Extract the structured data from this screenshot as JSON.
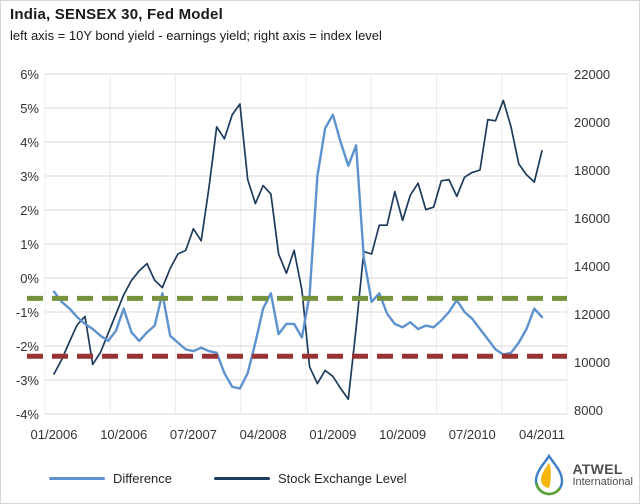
{
  "header": {
    "title": "India, SENSEX 30, Fed Model",
    "subtitle": "left axis = 10Y bond yield - earnings yield; right axis = index level"
  },
  "legend": {
    "items": [
      {
        "label": "Difference",
        "color": "#5E92CF"
      },
      {
        "label": "Stock Exchange Level",
        "color": "#1F3B5C"
      }
    ]
  },
  "logo": {
    "name": "ATWEL",
    "subname": "International"
  },
  "chart_data": {
    "type": "line",
    "title": "India, SENSEX 30, Fed Model",
    "subtitle": "left axis = 10Y bond yield - earnings yield; right axis = index level",
    "x_frequency": "monthly",
    "x_start": "01/2006",
    "x_end": "04/2011",
    "x_tick_labels": [
      "01/2006",
      "10/2006",
      "07/2007",
      "04/2008",
      "01/2009",
      "10/2009",
      "07/2010",
      "04/2011"
    ],
    "x_tick_month_index": [
      0,
      9,
      18,
      27,
      36,
      45,
      54,
      63
    ],
    "y_left": {
      "min": -4,
      "max": 6,
      "tick_step": 1,
      "ticks": [
        "6%",
        "5%",
        "4%",
        "3%",
        "2%",
        "1%",
        "0%",
        "-1%",
        "-2%",
        "-3%",
        "-4%"
      ]
    },
    "y_right": {
      "min": 8000,
      "max": 22000,
      "tick_step": 2000,
      "ticks": [
        "22000",
        "20000",
        "18000",
        "16000",
        "14000",
        "12000",
        "10000",
        "8000"
      ]
    },
    "grid": {
      "horizontal": true,
      "vertical": "faint",
      "color": "#D9D9D9",
      "vertical_color": "#ECECEC"
    },
    "legend_position": "bottom",
    "series": [
      {
        "name": "Difference",
        "axis": "left",
        "color": "#5E92CF",
        "width": 2.4,
        "values": [
          -0.4,
          -0.7,
          -0.9,
          -1.15,
          -1.35,
          -1.5,
          -1.7,
          -1.85,
          -1.55,
          -0.9,
          -1.6,
          -1.85,
          -1.6,
          -1.4,
          -0.45,
          -1.7,
          -1.9,
          -2.1,
          -2.15,
          -2.05,
          -2.15,
          -2.2,
          -2.8,
          -3.2,
          -3.25,
          -2.8,
          -1.9,
          -0.9,
          -0.45,
          -1.65,
          -1.35,
          -1.35,
          -1.75,
          -0.5,
          3.0,
          4.4,
          4.8,
          4.0,
          3.3,
          3.9,
          0.6,
          -0.7,
          -0.45,
          -1.05,
          -1.35,
          -1.45,
          -1.3,
          -1.5,
          -1.4,
          -1.45,
          -1.25,
          -1.0,
          -0.65,
          -1.0,
          -1.2,
          -1.5,
          -1.8,
          -2.1,
          -2.25,
          -2.2,
          -1.9,
          -1.5,
          -0.9,
          -1.15
        ]
      },
      {
        "name": "Stock Exchange Level",
        "axis": "right",
        "color": "#1F3B5C",
        "width": 1.7,
        "values": [
          9500,
          10100,
          10850,
          11550,
          11900,
          9900,
          10400,
          11200,
          12000,
          12800,
          13400,
          13800,
          14100,
          13400,
          13100,
          13900,
          14500,
          14650,
          15550,
          15050,
          17250,
          19800,
          19300,
          20300,
          20750,
          17600,
          16600,
          17350,
          17000,
          14500,
          13700,
          14650,
          13000,
          9800,
          9100,
          9650,
          9400,
          8900,
          8450,
          11400,
          14600,
          14500,
          15700,
          15700,
          17100,
          15900,
          16950,
          17450,
          16350,
          16450,
          17550,
          17600,
          16900,
          17700,
          17900,
          18000,
          20100,
          20050,
          20900,
          19800,
          18250,
          17800,
          17500,
          18800
        ]
      }
    ],
    "reference_lines": [
      {
        "name": "upper-threshold",
        "axis": "left",
        "value": -0.6,
        "color": "#76923C",
        "style": "dashed"
      },
      {
        "name": "lower-threshold",
        "axis": "left",
        "value": -2.3,
        "color": "#9A3334",
        "style": "dashed"
      }
    ]
  }
}
